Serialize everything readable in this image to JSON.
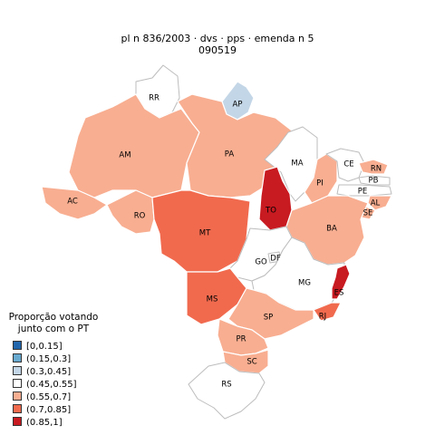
{
  "title_line1": "pl   n  836/2003 · dvs · pps · emenda n  5",
  "title_line2": "090519",
  "legend": {
    "title_line1": "Proporção votando",
    "title_line2": "junto com o PT",
    "items": [
      {
        "label": "[0,0.15]",
        "color": "#2166ac"
      },
      {
        "label": "(0.15,0.3]",
        "color": "#67a9cf"
      },
      {
        "label": "(0.3,0.45]",
        "color": "#c3d6e7"
      },
      {
        "label": "(0.45,0.55]",
        "color": "#ffffff"
      },
      {
        "label": "(0.55,0.7]",
        "color": "#f8ae91"
      },
      {
        "label": "(0.7,0.85]",
        "color": "#f16a4e"
      },
      {
        "label": "(0.85,1]",
        "color": "#c81a21"
      }
    ]
  },
  "states": {
    "RR": {
      "label": "RR",
      "color": "#ffffff"
    },
    "AP": {
      "label": "AP",
      "color": "#c3d6e7"
    },
    "AM": {
      "label": "AM",
      "color": "#f8ae91"
    },
    "PA": {
      "label": "PA",
      "color": "#f8ae91"
    },
    "AC": {
      "label": "AC",
      "color": "#f8ae91"
    },
    "RO": {
      "label": "RO",
      "color": "#f8ae91"
    },
    "MT": {
      "label": "MT",
      "color": "#f16a4e"
    },
    "MA": {
      "label": "MA",
      "color": "#ffffff"
    },
    "TO": {
      "label": "TO",
      "color": "#c81a21"
    },
    "PI": {
      "label": "PI",
      "color": "#f8ae91"
    },
    "CE": {
      "label": "CE",
      "color": "#ffffff"
    },
    "RN": {
      "label": "RN",
      "color": "#f8ae91"
    },
    "PB": {
      "label": "PB",
      "color": "#ffffff"
    },
    "PE": {
      "label": "PE",
      "color": "#ffffff"
    },
    "AL": {
      "label": "AL",
      "color": "#f8ae91"
    },
    "SE": {
      "label": "SE",
      "color": "#f8ae91"
    },
    "BA": {
      "label": "BA",
      "color": "#f8ae91"
    },
    "GO": {
      "label": "GO",
      "color": "#ffffff"
    },
    "DF": {
      "label": "DF",
      "color": "#ffffff"
    },
    "MG": {
      "label": "MG",
      "color": "#ffffff"
    },
    "ES": {
      "label": "ES",
      "color": "#c81a21"
    },
    "RJ": {
      "label": "RJ",
      "color": "#f16a4e"
    },
    "MS": {
      "label": "MS",
      "color": "#f16a4e"
    },
    "SP": {
      "label": "SP",
      "color": "#f8ae91"
    },
    "PR": {
      "label": "PR",
      "color": "#f8ae91"
    },
    "SC": {
      "label": "SC",
      "color": "#f8ae91"
    },
    "RS": {
      "label": "RS",
      "color": "#ffffff"
    }
  }
}
